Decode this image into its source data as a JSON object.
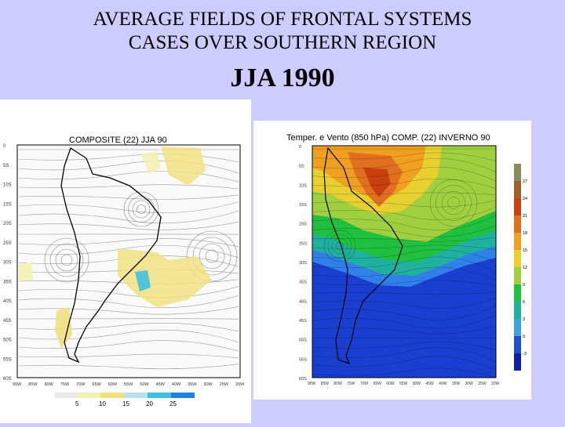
{
  "slide": {
    "title_line1": "AVERAGE FIELDS OF FRONTAL SYSTEMS",
    "title_line2": "CASES OVER  SOUTHERN REGION",
    "subtitle": "JJA 1990"
  },
  "left_map": {
    "title": "COMPOSITE (22) JJA 90",
    "lat_labels": [
      "0",
      "5S",
      "10S",
      "15S",
      "20S",
      "25S",
      "30S",
      "35S",
      "40S",
      "45S",
      "50S",
      "55S",
      "60S"
    ],
    "lon_labels": [
      "90W",
      "85W",
      "80W",
      "75W",
      "70W",
      "65W",
      "60W",
      "55W",
      "50W",
      "45W",
      "40W",
      "35W",
      "30W",
      "25W",
      "20W"
    ],
    "legend_values": [
      "5",
      "10",
      "15",
      "20",
      "25"
    ],
    "legend_colors": [
      "#f4f0b0",
      "#f0e080",
      "#b8e0f0",
      "#40c0e0",
      "#2080e0"
    ]
  },
  "right_map": {
    "title": "Temper. e Vento (850 hPa) COMP. (22) INVERNO 90",
    "lat_labels": [
      "0",
      "5S",
      "10S",
      "15S",
      "20S",
      "25S",
      "30S",
      "35S",
      "40S",
      "45S",
      "50S",
      "55S",
      "60S"
    ],
    "lon_labels": [
      "90W",
      "85W",
      "80W",
      "75W",
      "70W",
      "65W",
      "60W",
      "55W",
      "50W",
      "45W",
      "40W",
      "35W",
      "30W",
      "25W",
      "20W"
    ],
    "scale_values": [
      "27",
      "24",
      "21",
      "18",
      "15",
      "12",
      "9",
      "6",
      "3",
      "0",
      "-3"
    ],
    "scale_colors": [
      "#8b8b5a",
      "#a06030",
      "#c84010",
      "#e07020",
      "#f0a020",
      "#e8d030",
      "#a0d040",
      "#20c040",
      "#20b0a0",
      "#40a0e0",
      "#2050d0",
      "#1020a0"
    ]
  },
  "colors": {
    "background": "#ccccff",
    "ocean_deep": "#1a3fd0",
    "warm": "#d07a30"
  }
}
